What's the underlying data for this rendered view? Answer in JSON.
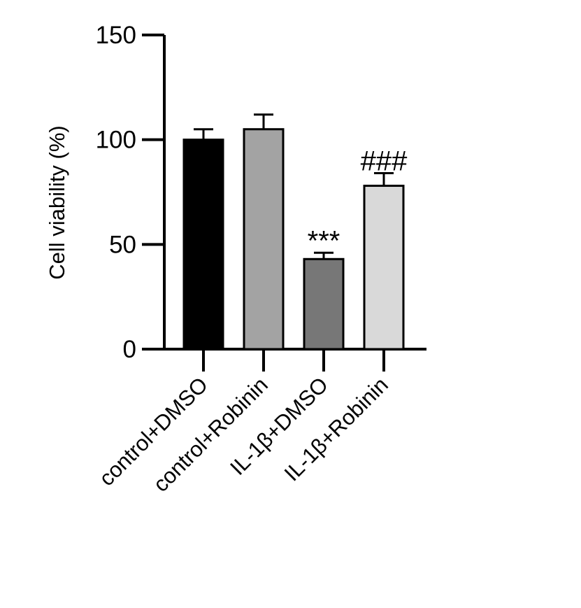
{
  "chart_data": {
    "type": "bar",
    "title": "",
    "xlabel": "",
    "ylabel": "Cell viability (%)",
    "ylim": [
      0,
      150
    ],
    "yticks": [
      0,
      50,
      100,
      150
    ],
    "grid": false,
    "categories": [
      "control+DMSO",
      "control+Robinin",
      "IL-1β+DMSO",
      "IL-1β+Robinin"
    ],
    "values": [
      100,
      105,
      43,
      78
    ],
    "errors": [
      5,
      7,
      3,
      6
    ],
    "bar_colors": [
      "#000000",
      "#a3a3a3",
      "#777777",
      "#d9d9d9"
    ],
    "annotations": [
      "",
      "",
      "***",
      "###"
    ]
  }
}
